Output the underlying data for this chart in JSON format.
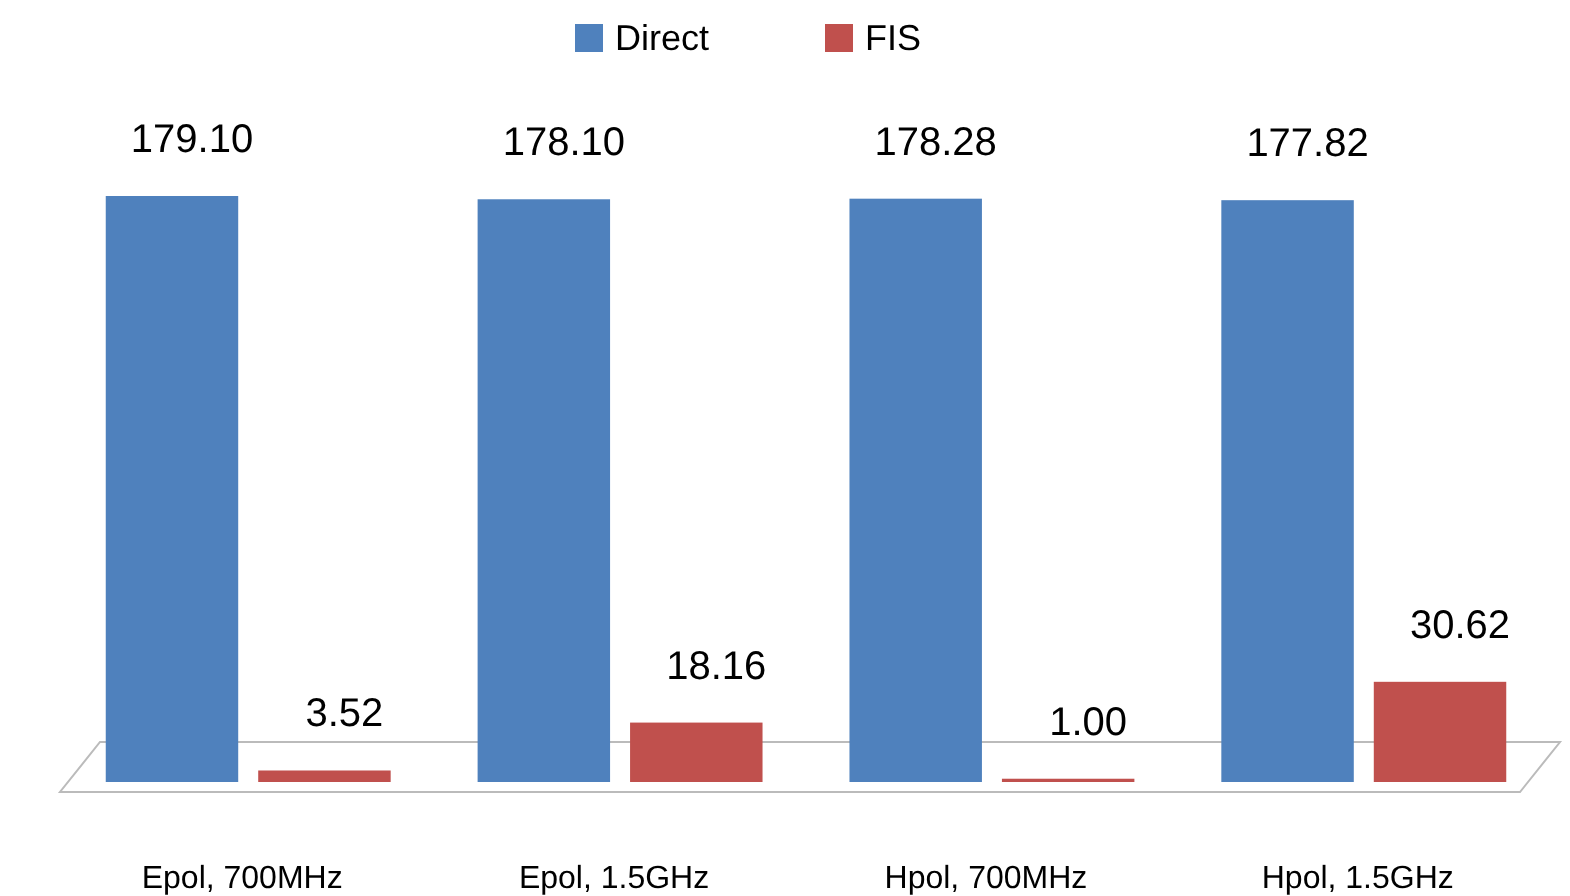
{
  "chart_data": {
    "type": "bar",
    "categories": [
      "Epol, 700MHz",
      "Epol, 1.5GHz",
      "Hpol, 700MHz",
      "Hpol, 1.5GHz"
    ],
    "series": [
      {
        "name": "Direct",
        "color": "#4f81bd",
        "values": [
          179.1,
          178.1,
          178.28,
          177.82
        ],
        "value_labels": [
          "179.10",
          "178.10",
          "178.28",
          "177.82"
        ]
      },
      {
        "name": "FIS",
        "color": "#c0504d",
        "values": [
          3.52,
          18.16,
          1.0,
          30.62
        ],
        "value_labels": [
          "3.52",
          "18.16",
          "1.00",
          "30.62"
        ]
      }
    ],
    "legend": "top"
  }
}
